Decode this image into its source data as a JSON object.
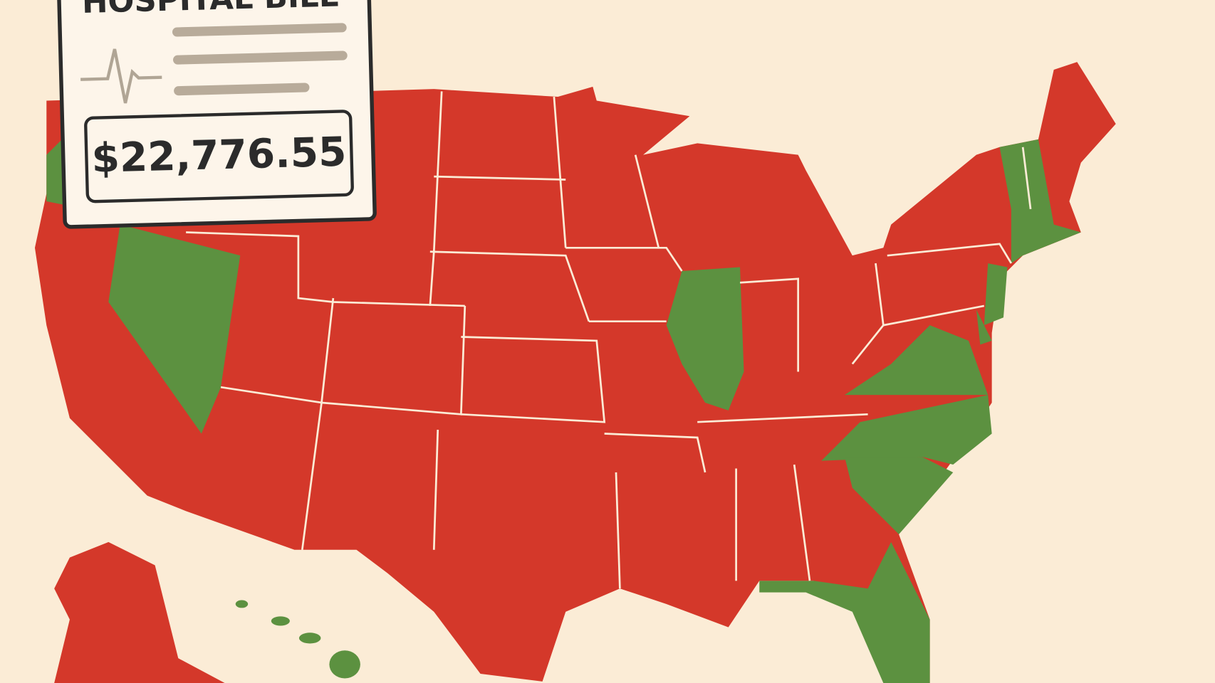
{
  "card": {
    "title": "HOSPITAL BILL",
    "amount": "$22,776.55"
  }
}
